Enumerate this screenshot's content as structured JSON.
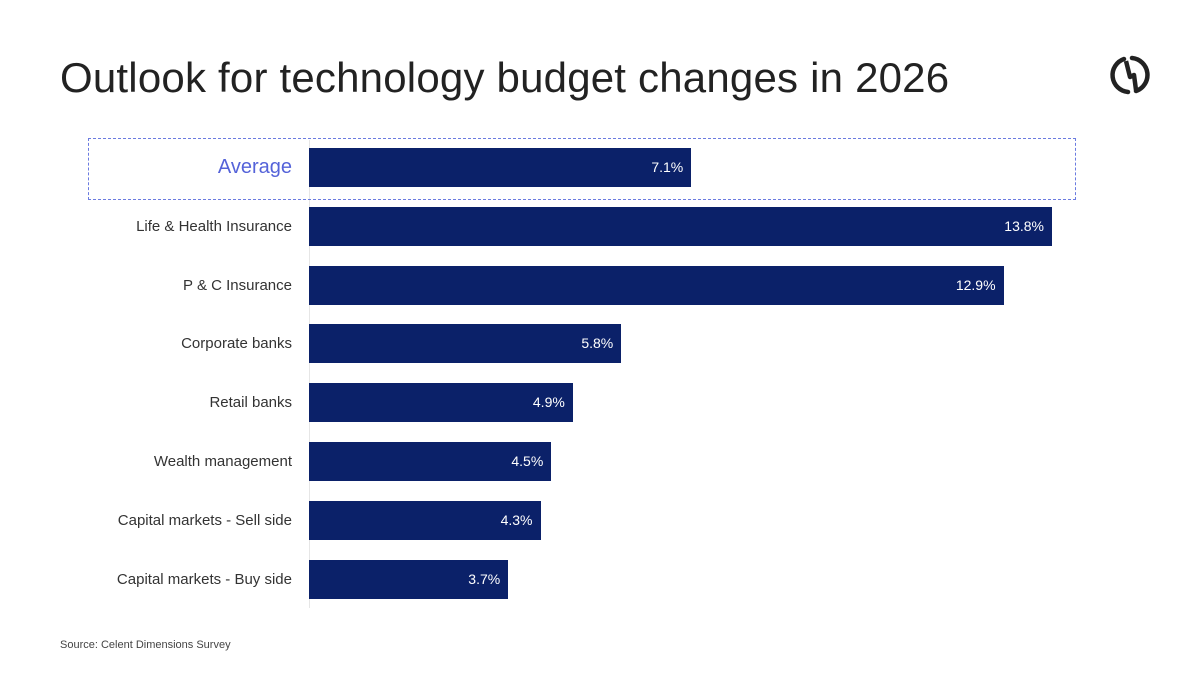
{
  "title": "Outlook for technology budget changes in 2026",
  "source": "Source: Celent Dimensions Survey",
  "logo_icon": "celent-logo-icon",
  "colors": {
    "bar": "#0b2169",
    "highlight": "#5563d9",
    "label": "#333333"
  },
  "chart_data": {
    "type": "bar",
    "orientation": "horizontal",
    "title": "Outlook for technology budget changes in 2026",
    "categories": [
      "Average",
      "Life & Health Insurance",
      "P & C Insurance",
      "Corporate banks",
      "Retail banks",
      "Wealth management",
      "Capital markets - Sell side",
      "Capital markets - Buy side"
    ],
    "values": [
      7.1,
      13.8,
      12.9,
      5.8,
      4.9,
      4.5,
      4.3,
      3.7
    ],
    "labels": [
      "7.1%",
      "13.8%",
      "12.9%",
      "5.8%",
      "4.9%",
      "4.5%",
      "4.3%",
      "3.7%"
    ],
    "highlighted_category": "Average",
    "unit": "%",
    "xlim": [
      0,
      13.8
    ],
    "grid": false
  }
}
